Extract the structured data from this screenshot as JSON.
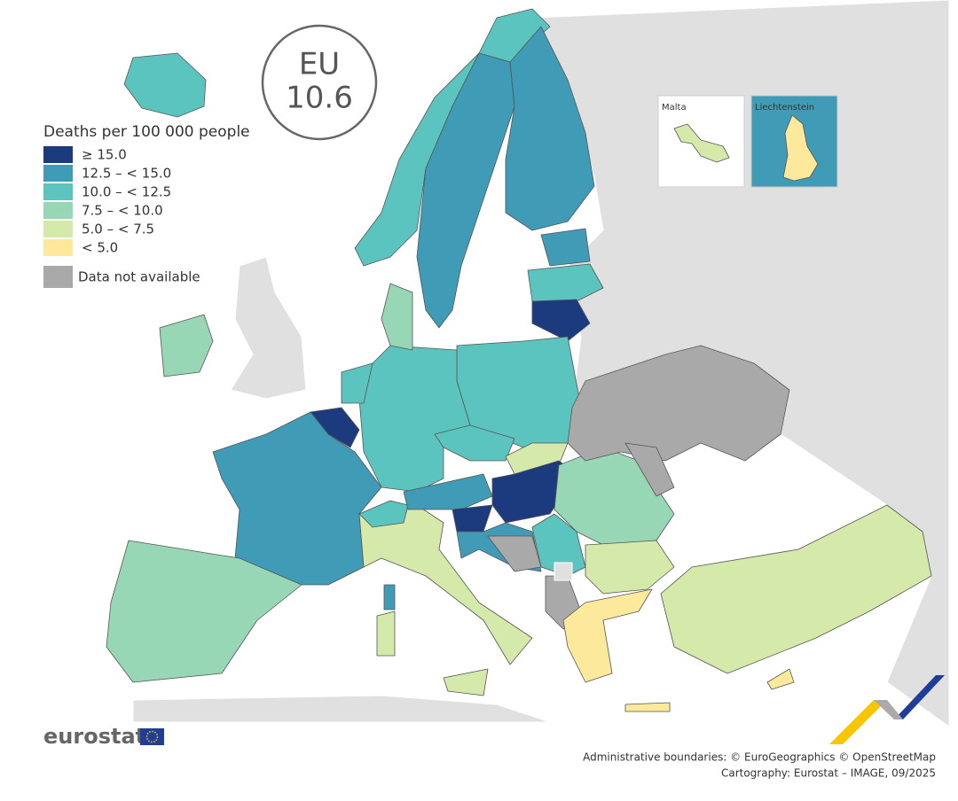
{
  "eu_badge": {
    "label": "EU",
    "value": "10.6"
  },
  "legend": {
    "title": "Deaths per 100 000 people",
    "items": [
      {
        "label": "≥ 15.0",
        "color": "#1c3a7e"
      },
      {
        "label": "12.5 – < 15.0",
        "color": "#3f9bb6"
      },
      {
        "label": "10.0 – < 12.5",
        "color": "#5cc4bf"
      },
      {
        "label": "7.5 – < 10.0",
        "color": "#97d7b5"
      },
      {
        "label": "5.0 – < 7.5",
        "color": "#d5eaaa"
      },
      {
        "label": "< 5.0",
        "color": "#fde99b"
      }
    ],
    "na": {
      "label": "Data not available",
      "color": "#a9a9a9"
    }
  },
  "insets": [
    "Malta",
    "Liechtenstein"
  ],
  "logo": "eurostat",
  "credits": [
    "Administrative boundaries: © EuroGeographics © OpenStreetMap",
    "Cartography: Eurostat – IMAGE, 09/2025"
  ]
}
